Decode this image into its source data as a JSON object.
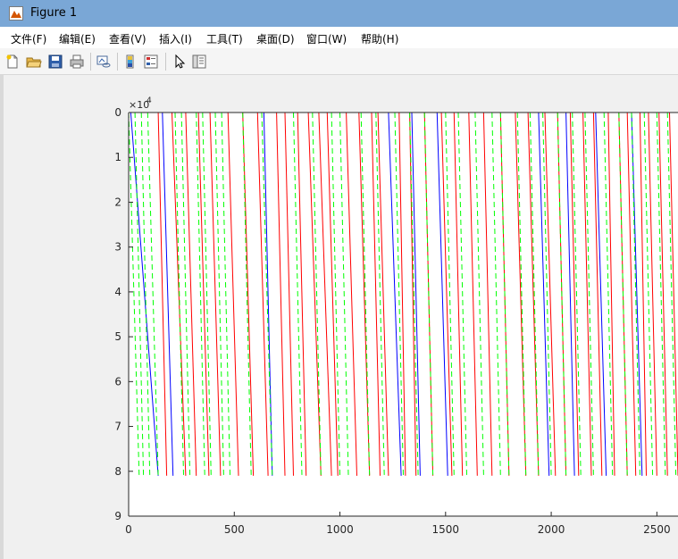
{
  "window": {
    "title": "Figure 1"
  },
  "menu": {
    "items": [
      {
        "label": "文件(F)"
      },
      {
        "label": "编辑(E)"
      },
      {
        "label": "查看(V)"
      },
      {
        "label": "插入(I)"
      },
      {
        "label": "工具(T)"
      },
      {
        "label": "桌面(D)"
      },
      {
        "label": "窗口(W)"
      },
      {
        "label": "帮助(H)"
      }
    ]
  },
  "toolbar": {
    "icons": [
      "new-figure-icon",
      "open-file-icon",
      "save-icon",
      "print-icon",
      "link-plot-icon",
      "insert-colorbar-icon",
      "insert-legend-icon",
      "select-arrow-icon",
      "property-inspector-icon"
    ]
  },
  "chart_data": {
    "type": "line",
    "title": "",
    "xlabel": "",
    "ylabel": "",
    "y_exponent_label": "×10",
    "y_exponent_power": "4",
    "y_reversed": true,
    "xlim": [
      0,
      2600
    ],
    "ylim": [
      0,
      90000
    ],
    "x_ticks": [
      0,
      500,
      1000,
      1500,
      2000,
      2500
    ],
    "x_tick_labels": [
      "0",
      "500",
      "1000",
      "1500",
      "2000",
      "2500"
    ],
    "y_ticks": [
      0,
      1,
      2,
      3,
      4,
      5,
      6,
      7,
      8,
      9
    ],
    "y_tick_labels": [
      "0",
      "1",
      "2",
      "3",
      "4",
      "5",
      "6",
      "7",
      "8",
      "9"
    ],
    "grid": false,
    "series": [
      {
        "color": "#0000ff",
        "style": "solid",
        "description": "sawtooth ramps 0 to 81000",
        "ramps": [
          [
            10,
            140
          ],
          [
            160,
            210
          ],
          [
            640,
            680
          ],
          [
            1230,
            1290
          ],
          [
            1340,
            1380
          ],
          [
            1460,
            1510
          ],
          [
            1940,
            1990
          ],
          [
            2070,
            2110
          ],
          [
            2210,
            2260
          ],
          [
            2380,
            2430
          ]
        ]
      },
      {
        "color": "#ff0000",
        "style": "solid",
        "description": "sawtooth ramps 0 to 81000",
        "ramps": [
          [
            140,
            180
          ],
          [
            205,
            270
          ],
          [
            270,
            320
          ],
          [
            330,
            380
          ],
          [
            385,
            435
          ],
          [
            470,
            520
          ],
          [
            540,
            590
          ],
          [
            610,
            660
          ],
          [
            700,
            740
          ],
          [
            740,
            780
          ],
          [
            800,
            840
          ],
          [
            850,
            910
          ],
          [
            900,
            960
          ],
          [
            940,
            990
          ],
          [
            1030,
            1080
          ],
          [
            1090,
            1140
          ],
          [
            1150,
            1190
          ],
          [
            1180,
            1230
          ],
          [
            1280,
            1310
          ],
          [
            1330,
            1360
          ],
          [
            1400,
            1440
          ],
          [
            1480,
            1530
          ],
          [
            1540,
            1580
          ],
          [
            1610,
            1650
          ],
          [
            1680,
            1720
          ],
          [
            1760,
            1800
          ],
          [
            1830,
            1880
          ],
          [
            1890,
            1940
          ],
          [
            1970,
            2020
          ],
          [
            2030,
            2070
          ],
          [
            2090,
            2130
          ],
          [
            2150,
            2190
          ],
          [
            2200,
            2240
          ],
          [
            2270,
            2300
          ],
          [
            2320,
            2360
          ],
          [
            2360,
            2400
          ],
          [
            2420,
            2450
          ],
          [
            2460,
            2500
          ],
          [
            2510,
            2550
          ],
          [
            2560,
            2600
          ]
        ]
      },
      {
        "color": "#00ff00",
        "style": "dashed",
        "description": "sawtooth ramps 0 to 81000",
        "ramps": [
          [
            0,
            50
          ],
          [
            30,
            70
          ],
          [
            60,
            100
          ],
          [
            90,
            140
          ],
          [
            220,
            260
          ],
          [
            250,
            290
          ],
          [
            320,
            360
          ],
          [
            350,
            390
          ],
          [
            410,
            450
          ],
          [
            440,
            480
          ],
          [
            540,
            580
          ],
          [
            630,
            680
          ],
          [
            780,
            820
          ],
          [
            870,
            910
          ],
          [
            960,
            1000
          ],
          [
            1000,
            1040
          ],
          [
            1100,
            1140
          ],
          [
            1170,
            1210
          ],
          [
            1260,
            1300
          ],
          [
            1330,
            1370
          ],
          [
            1400,
            1440
          ],
          [
            1500,
            1540
          ],
          [
            1560,
            1600
          ],
          [
            1640,
            1680
          ],
          [
            1720,
            1760
          ],
          [
            1760,
            1800
          ],
          [
            1840,
            1880
          ],
          [
            1900,
            1940
          ],
          [
            1960,
            2000
          ],
          [
            2030,
            2070
          ],
          [
            2100,
            2140
          ],
          [
            2160,
            2200
          ],
          [
            2250,
            2290
          ],
          [
            2320,
            2360
          ],
          [
            2380,
            2420
          ],
          [
            2440,
            2480
          ],
          [
            2500,
            2540
          ],
          [
            2550,
            2590
          ]
        ]
      }
    ]
  }
}
